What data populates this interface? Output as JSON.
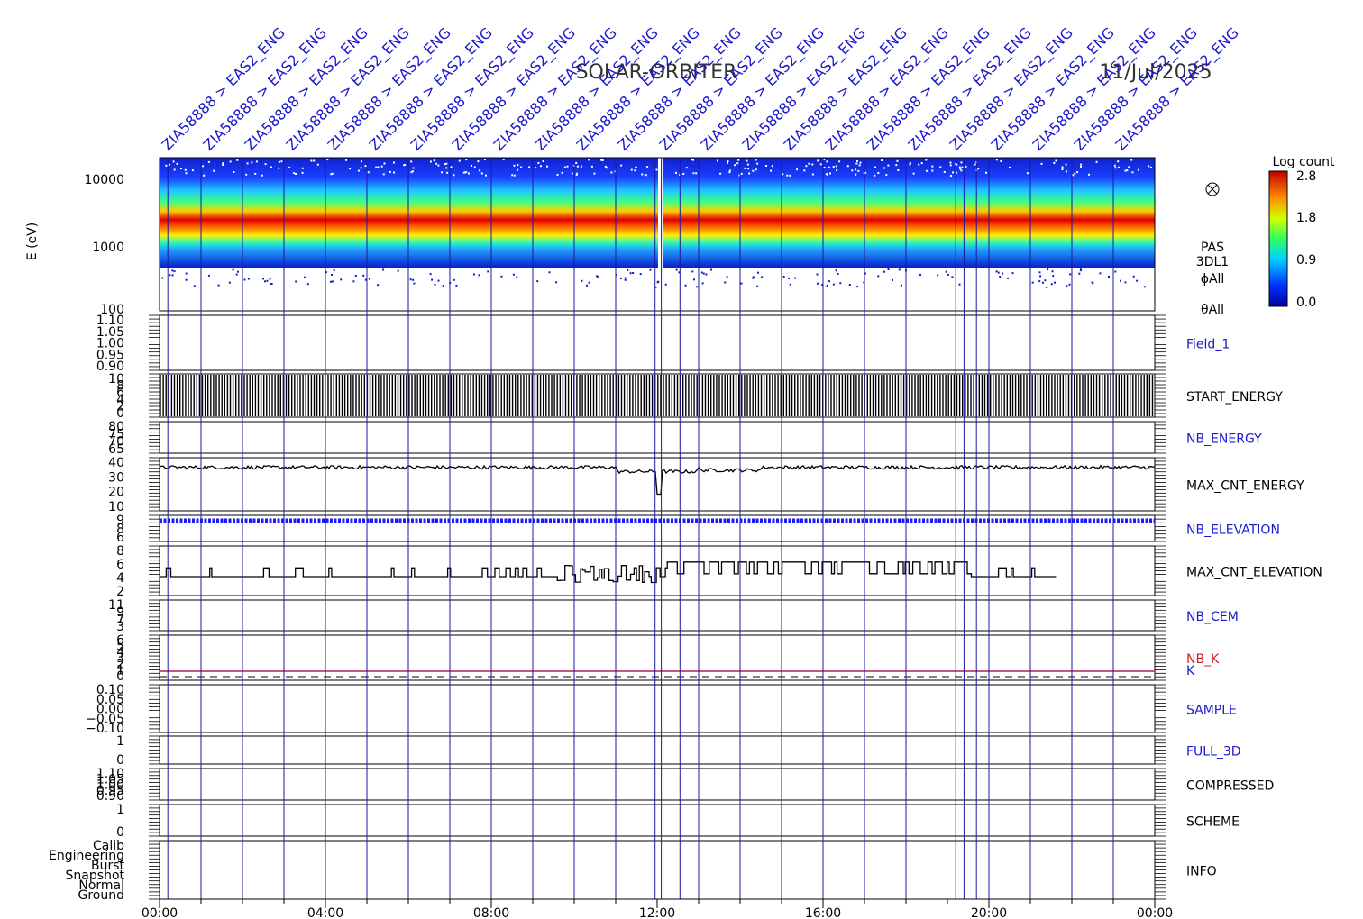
{
  "header": {
    "mission": "SOLAR-ORBITER",
    "date": "11/Jul/2025"
  },
  "chart_data": {
    "type": "heatmap",
    "x_ticks": [
      "00:00",
      "04:00",
      "08:00",
      "12:00",
      "16:00",
      "20:00",
      "00:00"
    ],
    "x_range_hours": [
      0,
      24
    ],
    "event_labels": [
      {
        "hour": 0.2,
        "text": "ZIA58888 > EAS2_ENG"
      },
      {
        "hour": 1.2,
        "text": "ZIA58888 > EAS2_ENG"
      },
      {
        "hour": 2.2,
        "text": "ZIA58888 > EAS2_ENG"
      },
      {
        "hour": 3.2,
        "text": "ZIA58888 > EAS2_ENG"
      },
      {
        "hour": 4.2,
        "text": "ZIA58888 > EAS2_ENG"
      },
      {
        "hour": 5.2,
        "text": "ZIA58888 > EAS2_ENG"
      },
      {
        "hour": 6.2,
        "text": "ZIA58888 > EAS2_ENG"
      },
      {
        "hour": 7.2,
        "text": "ZIA58888 > EAS2_ENG"
      },
      {
        "hour": 8.2,
        "text": "ZIA58888 > EAS2_ENG"
      },
      {
        "hour": 9.2,
        "text": "ZIA58888 > EAS2_ENG"
      },
      {
        "hour": 10.2,
        "text": "ZIA58888 > EAS2_ENG"
      },
      {
        "hour": 11.2,
        "text": "ZIA58888 > EAS2_ENG"
      },
      {
        "hour": 12.2,
        "text": "ZIA58888 > EAS2_ENG"
      },
      {
        "hour": 13.2,
        "text": "ZIA58888 > EAS2_ENG"
      },
      {
        "hour": 14.2,
        "text": "ZIA58888 > EAS2_ENG"
      },
      {
        "hour": 15.2,
        "text": "ZIA58888 > EAS2_ENG"
      },
      {
        "hour": 16.2,
        "text": "ZIA58888 > EAS2_ENG"
      },
      {
        "hour": 17.2,
        "text": "ZIA58888 > EAS2_ENG"
      },
      {
        "hour": 18.2,
        "text": "ZIA58888 > EAS2_ENG"
      },
      {
        "hour": 19.2,
        "text": "ZIA58888 > EAS2_ENG"
      },
      {
        "hour": 20.2,
        "text": "ZIA58888 > EAS2_ENG"
      },
      {
        "hour": 21.2,
        "text": "ZIA58888 > EAS2_ENG"
      },
      {
        "hour": 22.2,
        "text": "ZIA58888 > EAS2_ENG"
      },
      {
        "hour": 23.2,
        "text": "ZIA58888 > EAS2_ENG"
      }
    ],
    "event_lines_hours": [
      0.2,
      1.0,
      2.0,
      3.0,
      4.0,
      5.0,
      6.0,
      7.0,
      8.0,
      9.0,
      10.0,
      11.0,
      11.95,
      12.1,
      12.55,
      13.0,
      14.0,
      15.0,
      16.0,
      17.0,
      18.0,
      19.2,
      19.4,
      19.7,
      20.0,
      21.0,
      22.0,
      23.0
    ],
    "spectrogram": {
      "ylabel": "E (eV)",
      "y_ticks": [
        "10000",
        "1000",
        "100"
      ],
      "product_labels": [
        "PAS",
        "3DL1",
        "ϕAll",
        "θAll"
      ],
      "colorbar": {
        "label": "Log count",
        "ticks": [
          "2.8",
          "1.8",
          "0.9",
          "0.0"
        ]
      }
    },
    "panels": [
      {
        "name": "Field_1",
        "ticks": [
          "1.10",
          "1.05",
          "1.00",
          "0.95",
          "0.90"
        ],
        "label_color": "#1a1acc"
      },
      {
        "name": "START_ENERGY",
        "ticks": [
          "10",
          "8",
          "6",
          "4",
          "2",
          "0"
        ],
        "label_color": "#000000"
      },
      {
        "name": "NB_ENERGY",
        "ticks": [
          "80",
          "75",
          "70",
          "65"
        ],
        "label_color": "#1a1acc"
      },
      {
        "name": "MAX_CNT_ENERGY",
        "ticks": [
          "40",
          "30",
          "20",
          "10"
        ],
        "label_color": "#000000"
      },
      {
        "name": "NB_ELEVATION",
        "ticks": [
          "9",
          "8",
          "6"
        ],
        "label_color": "#1a1acc"
      },
      {
        "name": "MAX_CNT_ELEVATION",
        "ticks": [
          "8",
          "6",
          "4",
          "2"
        ],
        "label_color": "#000000"
      },
      {
        "name": "NB_CEM",
        "ticks": [
          "11",
          "9",
          "7",
          "3"
        ],
        "label_color": "#1a1acc"
      },
      {
        "name": "NB_K",
        "ticks": [
          "6",
          "5",
          "4",
          "3",
          "2",
          "1",
          "0"
        ],
        "label_color": "#cc2222",
        "second_label": "K"
      },
      {
        "name": "SAMPLE",
        "ticks": [
          "0.10",
          "0.05",
          "0.00",
          "−0.05",
          "−0.10"
        ],
        "label_color": "#1a1acc"
      },
      {
        "name": "FULL_3D",
        "ticks": [
          "1",
          "0"
        ],
        "label_color": "#1a1acc"
      },
      {
        "name": "COMPRESSED",
        "ticks": [
          "1.10",
          "1.05",
          "1.00",
          "0.95",
          "0.90"
        ],
        "label_color": "#000000"
      },
      {
        "name": "SCHEME",
        "ticks": [
          "1",
          "0"
        ],
        "label_color": "#000000"
      },
      {
        "name": "INFO",
        "ticks": [
          "Calib",
          "Engineering",
          "Burst",
          "Snapshot",
          "Normal",
          "Ground"
        ],
        "label_color": "#000000"
      }
    ],
    "max_cnt_energy_level": 37,
    "nb_elevation_level": 9,
    "max_cnt_elevation_level": 4
  }
}
